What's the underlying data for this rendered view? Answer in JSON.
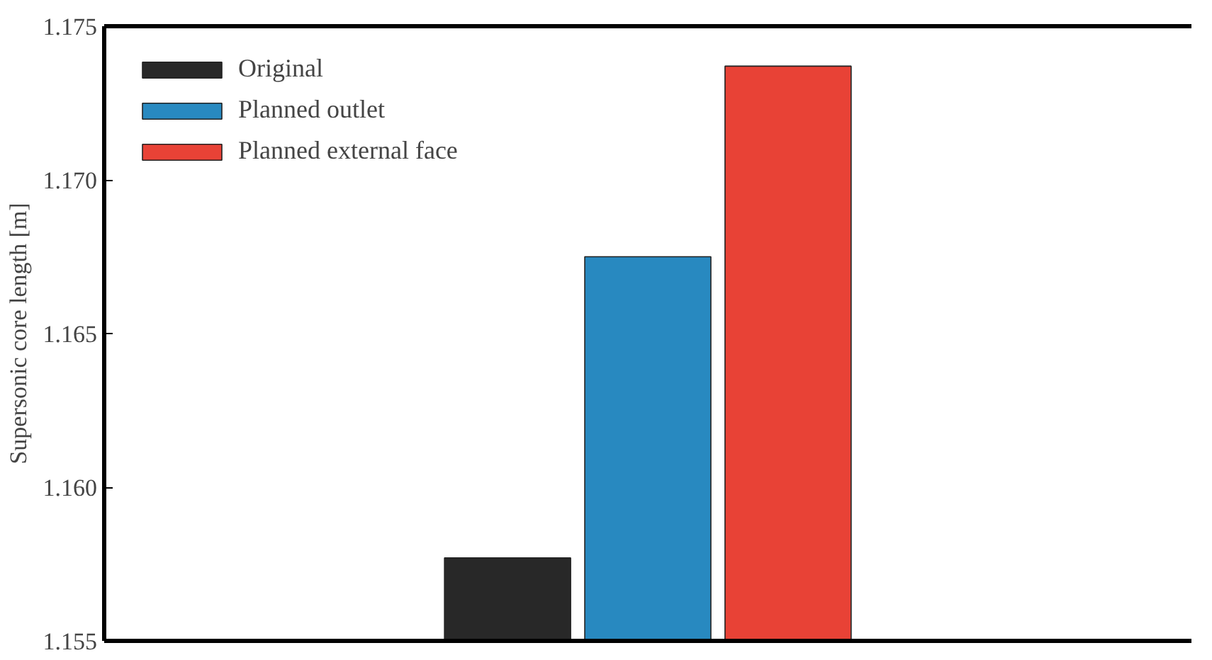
{
  "chart_data": {
    "type": "bar",
    "ylabel": "Supersonic core length [m]",
    "categories": [
      null
    ],
    "series": [
      {
        "name": "Original",
        "color": "#282828",
        "values": [
          1.1577
        ]
      },
      {
        "name": "Planned outlet",
        "color": "#2889c0",
        "values": [
          1.1675
        ]
      },
      {
        "name": "Planned external face",
        "color": "#e84236",
        "values": [
          1.1737
        ]
      }
    ],
    "ylim": [
      1.155,
      1.175
    ],
    "yticks": [
      {
        "value": 1.155,
        "label": "1.155"
      },
      {
        "value": 1.16,
        "label": "1.160"
      },
      {
        "value": 1.165,
        "label": "1.165"
      },
      {
        "value": 1.17,
        "label": "1.170"
      },
      {
        "value": 1.175,
        "label": "1.175"
      }
    ],
    "grid": false,
    "legend": "top left"
  }
}
